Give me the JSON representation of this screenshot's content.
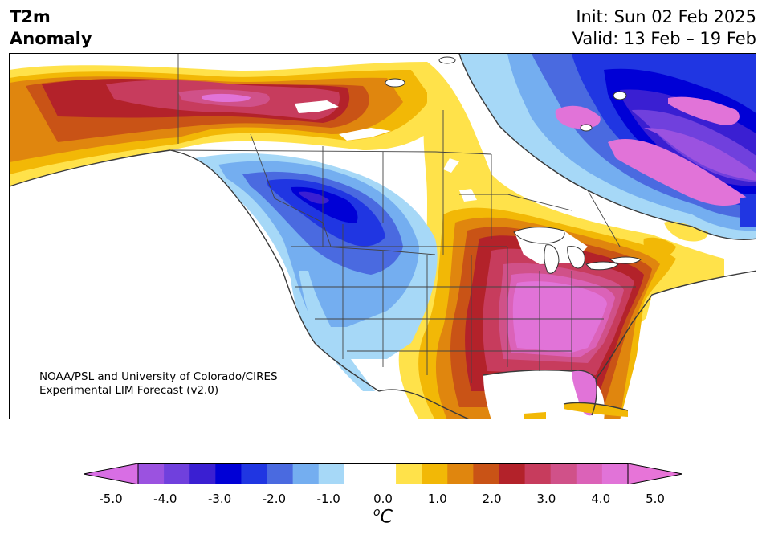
{
  "title": {
    "line1": "T2m",
    "line2": "Anomaly"
  },
  "run": {
    "init": "Init: Sun 02 Feb 2025",
    "valid": "Valid: 13 Feb – 19 Feb"
  },
  "credit": {
    "line1": "NOAA/PSL and University of Colorado/CIRES",
    "line2": "Experimental LIM Forecast (v2.0)"
  },
  "colorbar": {
    "unit_prefix": "o",
    "unit_main": "C",
    "ticks": [
      "-5.0",
      "-4.0",
      "-3.0",
      "-2.0",
      "-1.0",
      "0.0",
      "1.0",
      "2.0",
      "3.0",
      "4.0",
      "5.0"
    ],
    "colors": [
      "#9b52e0",
      "#7040dd",
      "#3a1fd2",
      "#0000d6",
      "#2036e2",
      "#4a6ae0",
      "#74aef0",
      "#a6d8f7",
      "#ffffff",
      "#ffffff",
      "#ffe24a",
      "#f2b806",
      "#e0860e",
      "#c95316",
      "#b3222a",
      "#c73c5d",
      "#d05189",
      "#db62b8",
      "#e173d8"
    ],
    "low_extend": "#d86ee4",
    "high_extend": "#e774d8"
  }
}
